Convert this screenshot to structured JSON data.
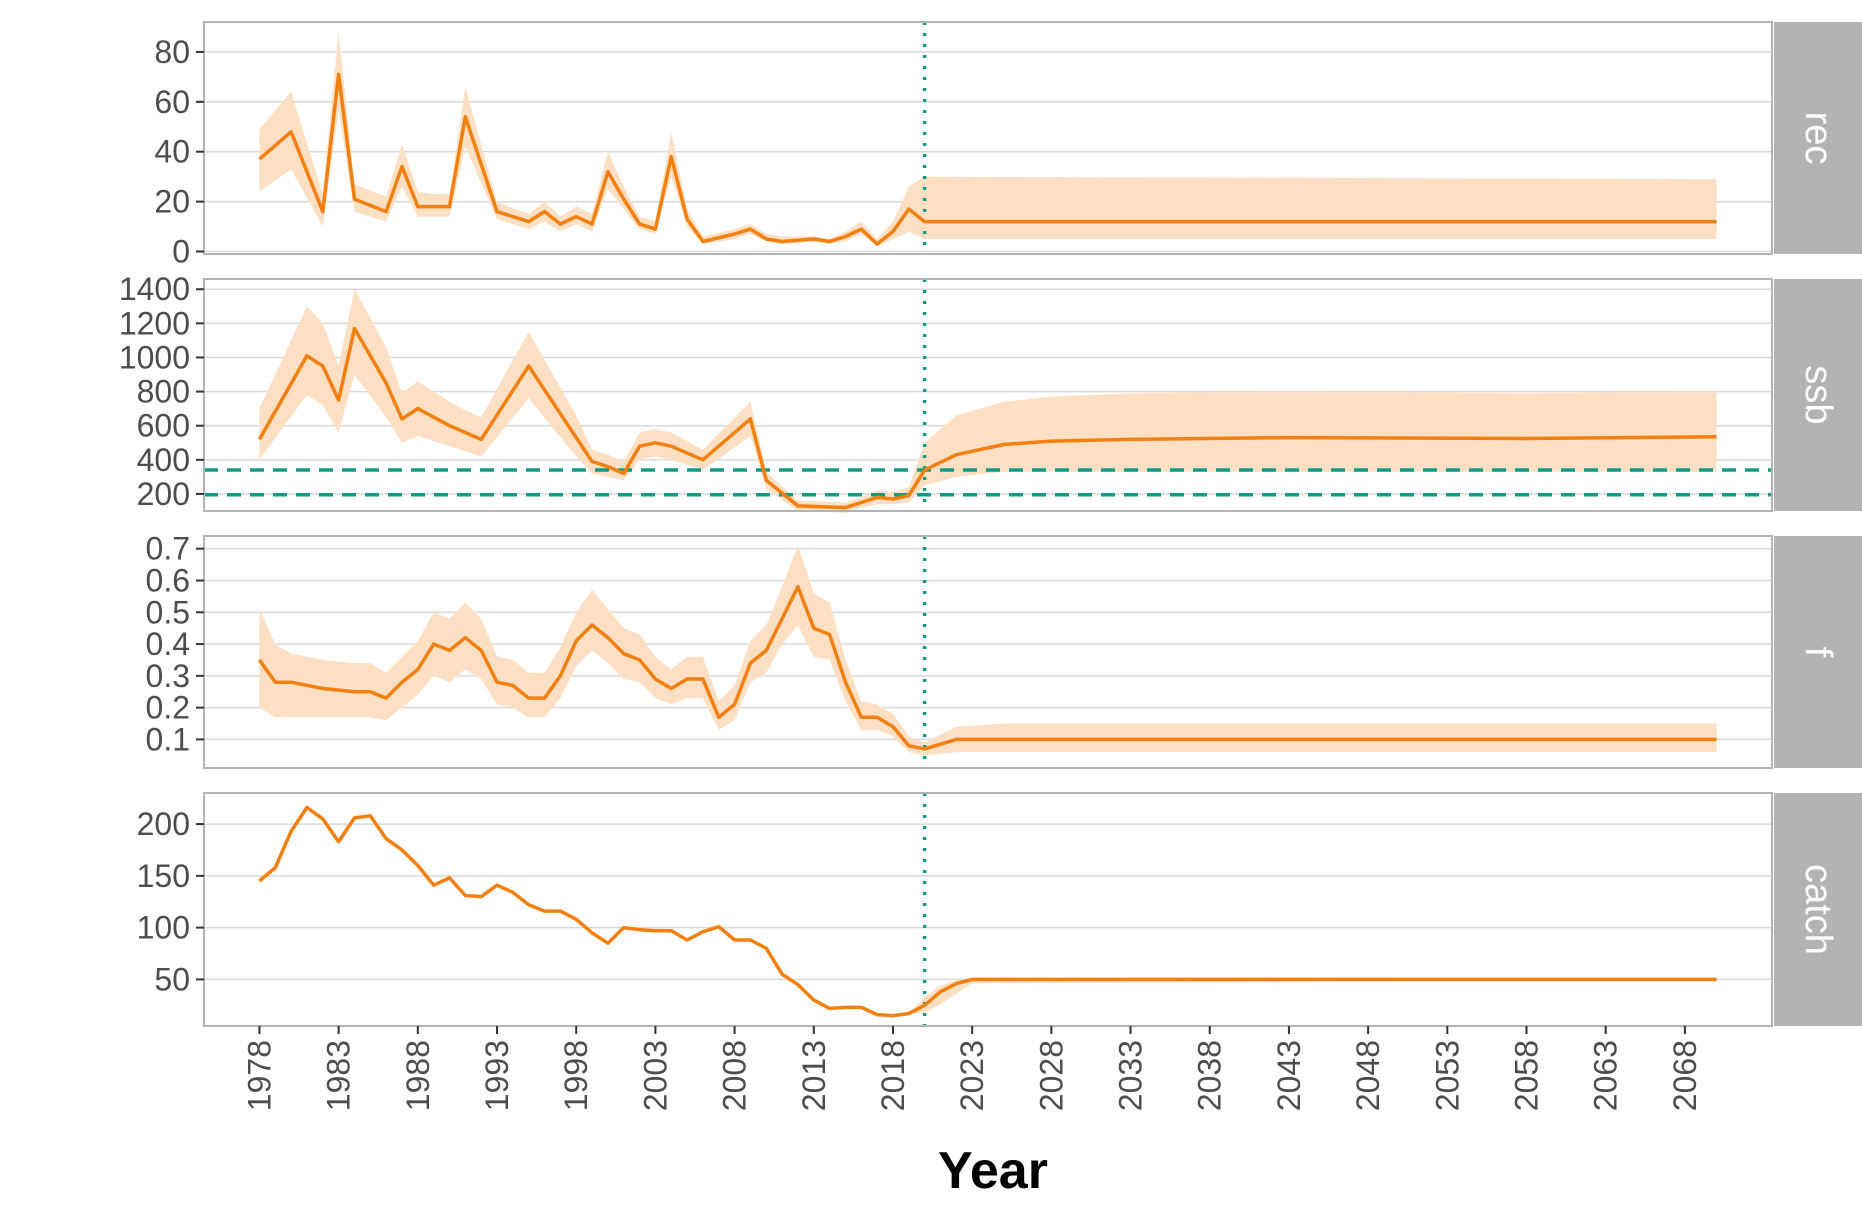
{
  "chart_data": {
    "type": "line",
    "xlabel": "Year",
    "x_ticks": [
      1978,
      1983,
      1988,
      1993,
      1998,
      2003,
      2008,
      2013,
      2018,
      2023,
      2028,
      2033,
      2038,
      2043,
      2048,
      2053,
      2058,
      2063,
      2068
    ],
    "xlim": [
      1974.5,
      2073.5
    ],
    "reference_year": 2020,
    "colors": {
      "line": "#F28010",
      "band": "#FDDFC4",
      "reference": "#129B84",
      "strip": "#B3B3B3",
      "grid": "#D9D9D9",
      "frame": "#B3B3B3"
    },
    "panels": [
      {
        "strip": "rec",
        "ylim": [
          -1,
          92
        ],
        "y_ticks": [
          0,
          20,
          40,
          60,
          80
        ],
        "hlines": [],
        "years": [
          1978,
          1980,
          1982,
          1983,
          1984,
          1986,
          1987,
          1988,
          1989,
          1990,
          1991,
          1993,
          1995,
          1996,
          1997,
          1998,
          1999,
          2000,
          2001,
          2002,
          2003,
          2004,
          2005,
          2006,
          2008,
          2009,
          2010,
          2011,
          2013,
          2014,
          2015,
          2016,
          2017,
          2018,
          2019,
          2020,
          2070
        ],
        "median": [
          37,
          48,
          16,
          71,
          21,
          16,
          34,
          18,
          18,
          18,
          54,
          16,
          12,
          16,
          11,
          14,
          11,
          32,
          21,
          11,
          9,
          38,
          13,
          4,
          7,
          9,
          5,
          4,
          5,
          4,
          6,
          9,
          3,
          8,
          17,
          12,
          12
        ],
        "lower": [
          24,
          33,
          10,
          57,
          16,
          12,
          26,
          14,
          14,
          14,
          42,
          13,
          9,
          12,
          8,
          11,
          8,
          25,
          17,
          9,
          7,
          30,
          10,
          3,
          5,
          7,
          4,
          3,
          4,
          3,
          4,
          7,
          2,
          5,
          8,
          5,
          5
        ],
        "upper": [
          49,
          64,
          23,
          88,
          27,
          22,
          43,
          24,
          23,
          23,
          66,
          20,
          15,
          20,
          14,
          18,
          15,
          40,
          26,
          14,
          12,
          48,
          17,
          6,
          9,
          11,
          7,
          6,
          6,
          5,
          8,
          12,
          5,
          12,
          26,
          30,
          29
        ]
      },
      {
        "strip": "ssb",
        "ylim": [
          100,
          1460
        ],
        "y_ticks": [
          200,
          400,
          600,
          800,
          1000,
          1200,
          1400
        ],
        "hlines": [
          340,
          195
        ],
        "years": [
          1978,
          1981,
          1982,
          1983,
          1984,
          1986,
          1987,
          1988,
          1990,
          1991,
          1992,
          1995,
          1998,
          1999,
          2000,
          2001,
          2002,
          2003,
          2004,
          2006,
          2009,
          2010,
          2012,
          2015,
          2016,
          2017,
          2018,
          2019,
          2020,
          2022,
          2025,
          2028,
          2033,
          2043,
          2058,
          2070
        ],
        "median": [
          520,
          1010,
          950,
          750,
          1170,
          850,
          640,
          700,
          600,
          560,
          520,
          950,
          530,
          390,
          360,
          320,
          480,
          500,
          480,
          400,
          640,
          280,
          130,
          120,
          150,
          180,
          170,
          190,
          340,
          430,
          490,
          510,
          520,
          530,
          525,
          535
        ],
        "lower": [
          400,
          780,
          720,
          560,
          900,
          650,
          500,
          540,
          480,
          450,
          420,
          760,
          420,
          320,
          300,
          280,
          400,
          420,
          400,
          340,
          540,
          230,
          100,
          90,
          120,
          140,
          140,
          150,
          250,
          300,
          330,
          330,
          330,
          330,
          330,
          330
        ],
        "upper": [
          700,
          1300,
          1200,
          950,
          1400,
          1060,
          790,
          860,
          740,
          690,
          650,
          1150,
          660,
          460,
          430,
          390,
          560,
          580,
          560,
          460,
          740,
          330,
          160,
          150,
          180,
          220,
          210,
          240,
          500,
          660,
          740,
          770,
          790,
          800,
          790,
          800
        ]
      },
      {
        "strip": "f",
        "ylim": [
          0.01,
          0.74
        ],
        "y_ticks": [
          0.1,
          0.2,
          0.3,
          0.4,
          0.5,
          0.6,
          0.7
        ],
        "hlines": [],
        "years": [
          1978,
          1979,
          1980,
          1982,
          1984,
          1985,
          1986,
          1987,
          1988,
          1989,
          1990,
          1991,
          1992,
          1993,
          1994,
          1995,
          1996,
          1997,
          1998,
          1999,
          2000,
          2001,
          2002,
          2003,
          2004,
          2005,
          2006,
          2007,
          2008,
          2009,
          2010,
          2011,
          2012,
          2013,
          2014,
          2015,
          2016,
          2017,
          2018,
          2019,
          2020,
          2022,
          2025,
          2070
        ],
        "median": [
          0.35,
          0.28,
          0.28,
          0.26,
          0.25,
          0.25,
          0.23,
          0.28,
          0.32,
          0.4,
          0.38,
          0.42,
          0.38,
          0.28,
          0.27,
          0.23,
          0.23,
          0.3,
          0.41,
          0.46,
          0.42,
          0.37,
          0.35,
          0.29,
          0.26,
          0.29,
          0.29,
          0.17,
          0.21,
          0.34,
          0.38,
          0.48,
          0.58,
          0.45,
          0.43,
          0.28,
          0.17,
          0.17,
          0.14,
          0.08,
          0.07,
          0.1,
          0.1,
          0.1
        ],
        "lower": [
          0.2,
          0.17,
          0.17,
          0.17,
          0.17,
          0.17,
          0.16,
          0.2,
          0.24,
          0.3,
          0.28,
          0.32,
          0.29,
          0.21,
          0.2,
          0.17,
          0.17,
          0.23,
          0.33,
          0.38,
          0.34,
          0.29,
          0.28,
          0.23,
          0.21,
          0.23,
          0.23,
          0.13,
          0.16,
          0.28,
          0.31,
          0.4,
          0.46,
          0.36,
          0.35,
          0.22,
          0.13,
          0.13,
          0.11,
          0.06,
          0.05,
          0.06,
          0.06,
          0.06
        ],
        "upper": [
          0.51,
          0.4,
          0.37,
          0.35,
          0.34,
          0.34,
          0.31,
          0.36,
          0.41,
          0.5,
          0.48,
          0.53,
          0.48,
          0.36,
          0.35,
          0.31,
          0.31,
          0.39,
          0.5,
          0.57,
          0.51,
          0.45,
          0.43,
          0.36,
          0.32,
          0.36,
          0.36,
          0.22,
          0.27,
          0.41,
          0.46,
          0.58,
          0.71,
          0.56,
          0.53,
          0.35,
          0.22,
          0.21,
          0.18,
          0.11,
          0.09,
          0.14,
          0.15,
          0.15
        ]
      },
      {
        "strip": "catch",
        "ylim": [
          5,
          230
        ],
        "y_ticks": [
          50,
          100,
          150,
          200
        ],
        "hlines": [],
        "years": [
          1978,
          1979,
          1980,
          1981,
          1982,
          1983,
          1984,
          1985,
          1986,
          1987,
          1988,
          1989,
          1990,
          1991,
          1992,
          1993,
          1994,
          1995,
          1996,
          1997,
          1998,
          1999,
          2000,
          2001,
          2002,
          2003,
          2004,
          2005,
          2006,
          2007,
          2008,
          2009,
          2010,
          2011,
          2012,
          2013,
          2014,
          2015,
          2016,
          2017,
          2018,
          2019,
          2020,
          2021,
          2022,
          2023,
          2070
        ],
        "median": [
          145,
          158,
          193,
          216,
          205,
          183,
          206,
          208,
          186,
          175,
          160,
          141,
          148,
          131,
          130,
          141,
          134,
          122,
          116,
          116,
          108,
          95,
          85,
          100,
          98,
          97,
          97,
          88,
          96,
          101,
          88,
          88,
          80,
          55,
          45,
          30,
          22,
          23,
          23,
          16,
          15,
          17,
          25,
          38,
          46,
          50,
          50
        ],
        "lower": [
          145,
          158,
          193,
          216,
          205,
          183,
          206,
          208,
          186,
          175,
          160,
          141,
          148,
          131,
          130,
          141,
          134,
          122,
          116,
          116,
          108,
          95,
          85,
          100,
          98,
          97,
          97,
          88,
          96,
          101,
          88,
          88,
          80,
          55,
          45,
          30,
          22,
          23,
          23,
          16,
          15,
          17,
          18,
          26,
          36,
          46,
          50
        ],
        "upper": [
          145,
          158,
          193,
          216,
          205,
          183,
          206,
          208,
          186,
          175,
          160,
          141,
          148,
          131,
          130,
          141,
          134,
          122,
          116,
          116,
          108,
          95,
          85,
          100,
          98,
          97,
          97,
          88,
          96,
          101,
          88,
          88,
          80,
          55,
          45,
          30,
          22,
          23,
          23,
          16,
          15,
          17,
          33,
          44,
          49,
          50,
          50
        ]
      }
    ]
  }
}
